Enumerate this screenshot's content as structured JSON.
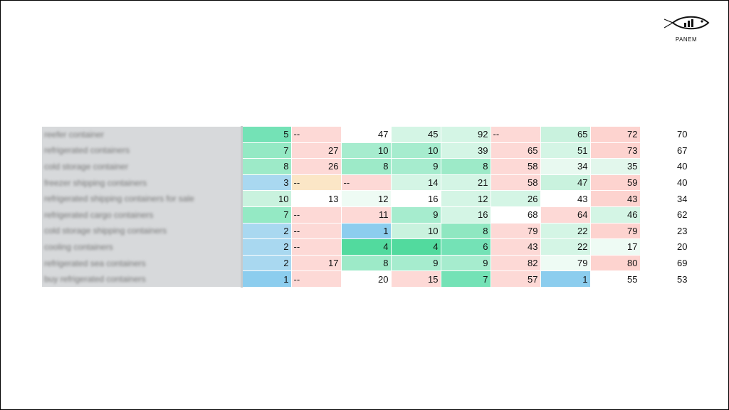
{
  "logo": {
    "text": "PANEM"
  },
  "table": {
    "rows": [
      {
        "label": "reefer container",
        "cells": [
          5,
          "--",
          47,
          45,
          92,
          "--",
          65,
          72,
          70
        ],
        "colors": [
          "#74e2b6",
          "#fdd9d6",
          "#ffffff",
          "#d4f5e5",
          "#d4f5e5",
          "#fdd9d6",
          "#c9f2de",
          "#fdd3cf",
          "#ffffff"
        ]
      },
      {
        "label": "refrigerated containers",
        "cells": [
          7,
          27,
          10,
          10,
          39,
          65,
          51,
          73,
          67
        ],
        "colors": [
          "#94e9c4",
          "#fdd9d6",
          "#a6ecce",
          "#a6ecce",
          "#d4f5e5",
          "#fdd9d6",
          "#d4f5e5",
          "#fdd3cf",
          "#ffffff"
        ]
      },
      {
        "label": "cold storage container",
        "cells": [
          8,
          26,
          8,
          9,
          8,
          58,
          34,
          35,
          40
        ],
        "colors": [
          "#9deac8",
          "#fdd9d6",
          "#9deac8",
          "#a6ecce",
          "#9deac8",
          "#fdd9d6",
          "#e8f9f0",
          "#e2f7ec",
          "#ffffff"
        ]
      },
      {
        "label": "freezer shipping containers",
        "cells": [
          3,
          "--",
          "--",
          14,
          21,
          58,
          47,
          59,
          40
        ],
        "colors": [
          "#a9d8f0",
          "#fbe6c6",
          "#fdd9d6",
          "#d4f5e5",
          "#d4f5e5",
          "#fdd9d6",
          "#c9f2de",
          "#fdd3cf",
          "#ffffff"
        ]
      },
      {
        "label": "refrigerated shipping containers for sale",
        "cells": [
          10,
          13,
          12,
          16,
          12,
          26,
          43,
          43,
          34
        ],
        "colors": [
          "#c9f2de",
          "#ffffff",
          "#eefbf4",
          "#ffffff",
          "#d4f5e5",
          "#d4f5e5",
          "#ffffff",
          "#fdd3cf",
          "#ffffff"
        ]
      },
      {
        "label": "refrigerated cargo containers",
        "cells": [
          7,
          "--",
          11,
          9,
          16,
          68,
          64,
          46,
          62
        ],
        "colors": [
          "#94e9c4",
          "#fdd9d6",
          "#fdd9d6",
          "#a6ecce",
          "#d4f5e5",
          "#ffffff",
          "#fdd9d6",
          "#d4f5e5",
          "#ffffff"
        ]
      },
      {
        "label": "cold storage shipping containers",
        "cells": [
          2,
          "--",
          1,
          10,
          8,
          79,
          22,
          79,
          23
        ],
        "colors": [
          "#a9d8f0",
          "#fdd9d6",
          "#8ccdee",
          "#c9f2de",
          "#8fe7c1",
          "#fdd9d6",
          "#d4f5e5",
          "#fdd3cf",
          "#ffffff"
        ]
      },
      {
        "label": "cooling containers",
        "cells": [
          2,
          "--",
          4,
          4,
          6,
          43,
          22,
          17,
          20
        ],
        "colors": [
          "#a9d8f0",
          "#fdd9d6",
          "#52da9e",
          "#52da9e",
          "#74e2b6",
          "#fdd9d6",
          "#d4f5e5",
          "#eefbf4",
          "#ffffff"
        ]
      },
      {
        "label": "refrigerated sea containers",
        "cells": [
          2,
          17,
          8,
          9,
          9,
          82,
          79,
          80,
          69
        ],
        "colors": [
          "#a9d8f0",
          "#fdd9d6",
          "#9deac8",
          "#a6ecce",
          "#a6ecce",
          "#fdd9d6",
          "#eefbf4",
          "#fdd3cf",
          "#ffffff"
        ]
      },
      {
        "label": "buy refrigerated containers",
        "cells": [
          1,
          "--",
          20,
          15,
          7,
          57,
          1,
          55,
          53
        ],
        "colors": [
          "#8ccdee",
          "#fdd9d6",
          "#ffffff",
          "#fdd9d6",
          "#74e2b6",
          "#fdd9d6",
          "#8ccdee",
          "#ffffff",
          "#ffffff"
        ]
      }
    ]
  }
}
